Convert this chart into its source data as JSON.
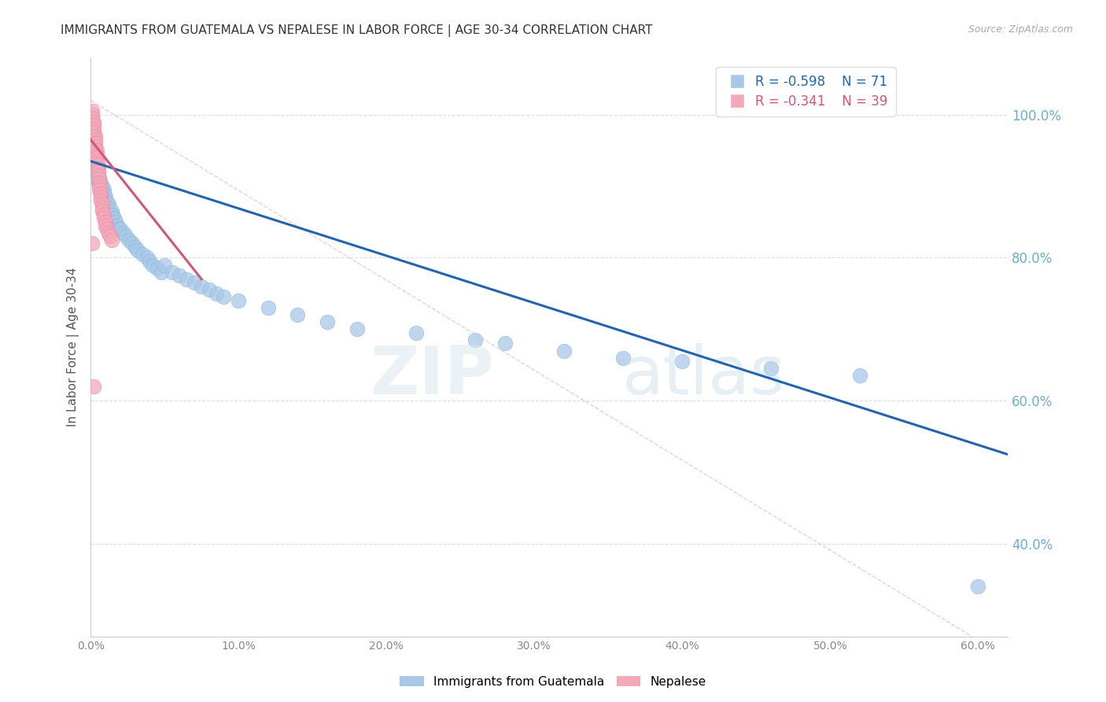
{
  "title": "IMMIGRANTS FROM GUATEMALA VS NEPALESE IN LABOR FORCE | AGE 30-34 CORRELATION CHART",
  "source": "Source: ZipAtlas.com",
  "ylabel_left": "In Labor Force | Age 30-34",
  "legend_labels": [
    "Immigrants from Guatemala",
    "Nepalese"
  ],
  "legend_R": [
    -0.598,
    -0.341
  ],
  "legend_N": [
    71,
    39
  ],
  "blue_color": "#a8c8e8",
  "pink_color": "#f4a8b8",
  "blue_line_color": "#2166ac",
  "pink_line_color": "#d6547a",
  "axis_tick_color": "#888888",
  "right_axis_color": "#6aaed6",
  "title_color": "#333333",
  "xlim": [
    0.0,
    0.62
  ],
  "ylim": [
    0.27,
    1.08
  ],
  "xticks": [
    0.0,
    0.1,
    0.2,
    0.3,
    0.4,
    0.5,
    0.6
  ],
  "yticks_right": [
    0.4,
    0.6,
    0.8,
    1.0
  ],
  "guatemala_line_x": [
    0.0,
    0.62
  ],
  "guatemala_line_y": [
    0.935,
    0.525
  ],
  "nepalese_line_x": [
    0.0,
    0.075
  ],
  "nepalese_line_y": [
    0.965,
    0.77
  ],
  "ref_line_x": [
    0.0,
    0.62
  ],
  "ref_line_y": [
    1.02,
    0.24
  ],
  "guatemala_x": [
    0.001,
    0.001,
    0.002,
    0.002,
    0.002,
    0.003,
    0.003,
    0.003,
    0.003,
    0.004,
    0.004,
    0.004,
    0.005,
    0.005,
    0.005,
    0.006,
    0.006,
    0.007,
    0.007,
    0.008,
    0.008,
    0.009,
    0.009,
    0.01,
    0.01,
    0.011,
    0.012,
    0.012,
    0.013,
    0.014,
    0.015,
    0.016,
    0.017,
    0.018,
    0.019,
    0.02,
    0.022,
    0.024,
    0.026,
    0.028,
    0.03,
    0.032,
    0.035,
    0.038,
    0.04,
    0.042,
    0.045,
    0.048,
    0.05,
    0.055,
    0.06,
    0.065,
    0.07,
    0.075,
    0.08,
    0.085,
    0.09,
    0.1,
    0.12,
    0.14,
    0.16,
    0.18,
    0.22,
    0.26,
    0.28,
    0.32,
    0.36,
    0.4,
    0.46,
    0.52,
    0.6
  ],
  "guatemala_y": [
    0.97,
    0.96,
    0.955,
    0.95,
    0.945,
    0.94,
    0.935,
    0.93,
    0.925,
    0.93,
    0.925,
    0.92,
    0.915,
    0.91,
    0.905,
    0.91,
    0.905,
    0.905,
    0.9,
    0.9,
    0.895,
    0.895,
    0.89,
    0.885,
    0.88,
    0.875,
    0.875,
    0.87,
    0.86,
    0.865,
    0.86,
    0.855,
    0.85,
    0.845,
    0.84,
    0.84,
    0.835,
    0.83,
    0.825,
    0.82,
    0.815,
    0.81,
    0.805,
    0.8,
    0.795,
    0.79,
    0.785,
    0.78,
    0.79,
    0.78,
    0.775,
    0.77,
    0.765,
    0.76,
    0.755,
    0.75,
    0.745,
    0.74,
    0.73,
    0.72,
    0.71,
    0.7,
    0.695,
    0.685,
    0.68,
    0.67,
    0.66,
    0.655,
    0.645,
    0.635,
    0.34
  ],
  "nepalese_x": [
    0.001,
    0.001,
    0.001,
    0.002,
    0.002,
    0.002,
    0.002,
    0.003,
    0.003,
    0.003,
    0.003,
    0.004,
    0.004,
    0.004,
    0.004,
    0.005,
    0.005,
    0.005,
    0.005,
    0.006,
    0.006,
    0.006,
    0.006,
    0.007,
    0.007,
    0.007,
    0.008,
    0.008,
    0.008,
    0.009,
    0.009,
    0.01,
    0.01,
    0.011,
    0.012,
    0.013,
    0.014,
    0.002,
    0.001
  ],
  "nepalese_y": [
    1.005,
    1.0,
    0.995,
    0.99,
    0.985,
    0.98,
    0.975,
    0.97,
    0.965,
    0.96,
    0.955,
    0.95,
    0.945,
    0.94,
    0.935,
    0.93,
    0.925,
    0.92,
    0.915,
    0.91,
    0.905,
    0.9,
    0.895,
    0.89,
    0.885,
    0.88,
    0.875,
    0.87,
    0.865,
    0.86,
    0.855,
    0.85,
    0.845,
    0.84,
    0.835,
    0.83,
    0.825,
    0.62,
    0.82
  ]
}
